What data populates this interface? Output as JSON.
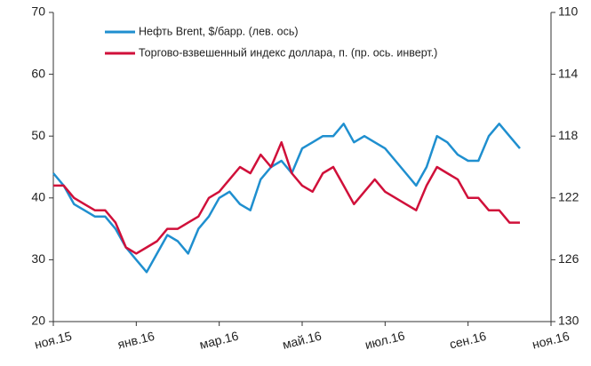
{
  "chart_data": {
    "type": "line",
    "xlim": [
      0,
      12
    ],
    "xticks": [
      {
        "value": 0,
        "label": "ноя.15"
      },
      {
        "value": 2,
        "label": "янв.16"
      },
      {
        "value": 4,
        "label": "мар.16"
      },
      {
        "value": 6,
        "label": "май.16"
      },
      {
        "value": 8,
        "label": "июл.16"
      },
      {
        "value": 10,
        "label": "сен.16"
      },
      {
        "value": 12,
        "label": "ноя.16"
      }
    ],
    "ylim": [
      20,
      70
    ],
    "yticks": [
      20,
      30,
      40,
      50,
      60,
      70
    ],
    "y2lim": [
      110,
      130
    ],
    "y2ticks": [
      110,
      114,
      118,
      122,
      126,
      130
    ],
    "y2_inverted": true,
    "grid": false,
    "legend": "top",
    "series": [
      {
        "name": "Нефть Brent, $/барр. (лев. ось)",
        "color": "#1f8fcf",
        "x": [
          0,
          0.25,
          0.5,
          0.75,
          1,
          1.25,
          1.5,
          1.75,
          2,
          2.25,
          2.5,
          2.75,
          3,
          3.25,
          3.5,
          3.75,
          4,
          4.25,
          4.5,
          4.75,
          5,
          5.25,
          5.5,
          5.75,
          6,
          6.25,
          6.5,
          6.75,
          7,
          7.25,
          7.5,
          7.75,
          8,
          8.25,
          8.5,
          8.75,
          9,
          9.25,
          9.5,
          9.75,
          10,
          10.25,
          10.5,
          10.75,
          11,
          11.25
        ],
        "values": [
          44,
          42,
          39,
          38,
          37,
          37,
          35,
          32,
          30,
          28,
          31,
          34,
          33,
          31,
          35,
          37,
          40,
          41,
          39,
          38,
          43,
          45,
          46,
          44,
          48,
          49,
          50,
          50,
          52,
          49,
          50,
          49,
          48,
          46,
          44,
          42,
          45,
          50,
          49,
          47,
          46,
          46,
          50,
          52,
          50,
          48
        ]
      },
      {
        "name": "Торгово-взвешенный индекс доллара, п. (пр. ось. инверт.)",
        "color": "#d0103a",
        "axis": "y2",
        "x": [
          0,
          0.25,
          0.5,
          0.75,
          1,
          1.25,
          1.5,
          1.75,
          2,
          2.25,
          2.5,
          2.75,
          3,
          3.25,
          3.5,
          3.75,
          4,
          4.25,
          4.5,
          4.75,
          5,
          5.25,
          5.5,
          5.75,
          6,
          6.25,
          6.5,
          6.75,
          7,
          7.25,
          7.5,
          7.75,
          8,
          8.25,
          8.5,
          8.75,
          9,
          9.25,
          9.5,
          9.75,
          10,
          10.25,
          10.5,
          10.75,
          11,
          11.25
        ],
        "values": [
          121.2,
          121.2,
          122,
          122.4,
          122.8,
          122.8,
          123.6,
          125.2,
          125.6,
          125.2,
          124.8,
          124,
          124,
          123.6,
          123.2,
          122,
          121.6,
          120.8,
          120,
          120.4,
          119.2,
          120,
          118.4,
          120.4,
          121.2,
          121.6,
          120.4,
          120,
          121.2,
          122.4,
          121.6,
          120.8,
          121.6,
          122,
          122.4,
          122.8,
          121.2,
          120,
          120.4,
          120.8,
          122,
          122,
          122.8,
          122.8,
          123.6,
          123.6
        ]
      }
    ]
  }
}
